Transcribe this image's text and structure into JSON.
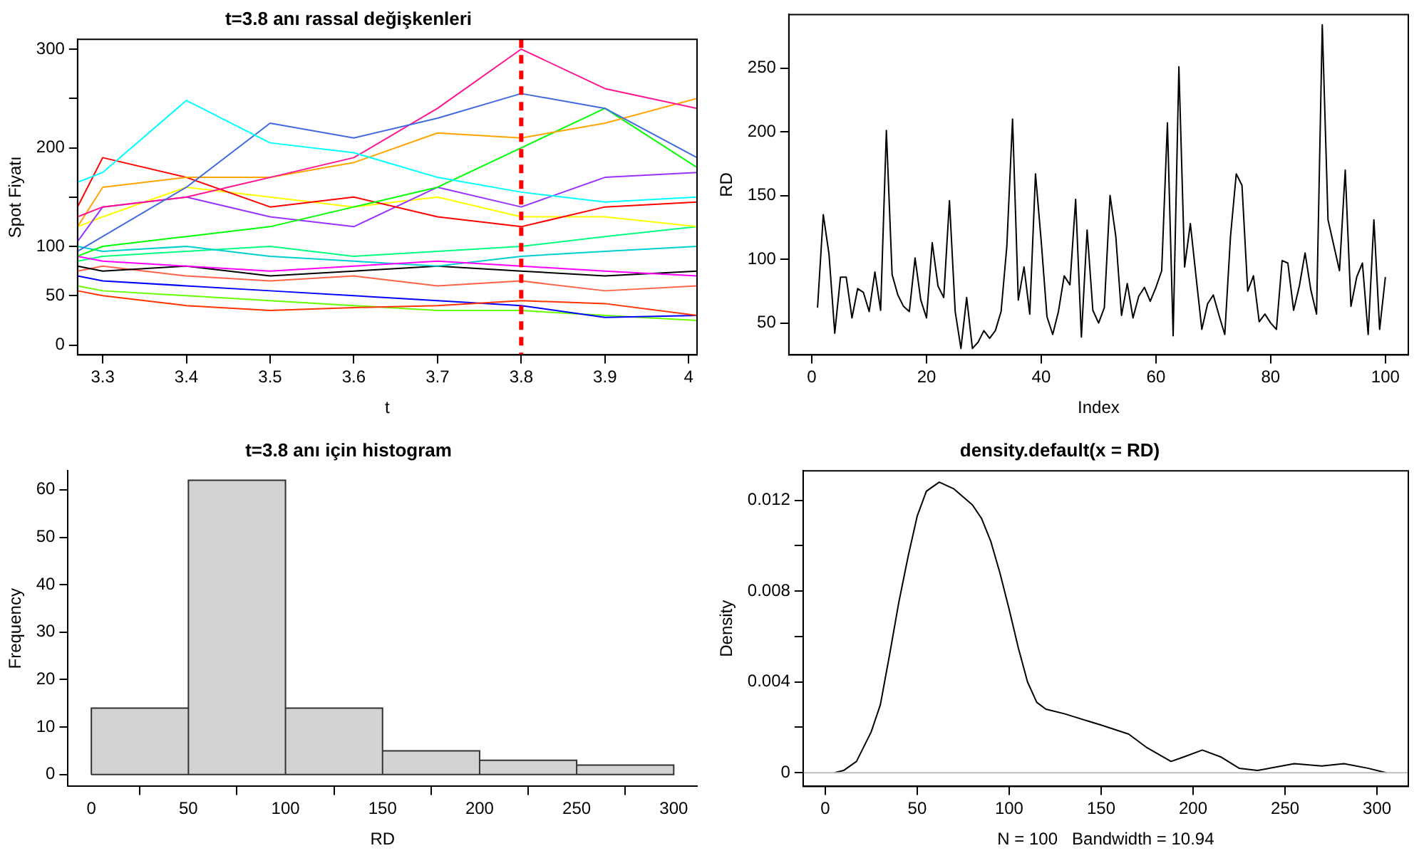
{
  "chart_data": [
    {
      "type": "line",
      "title": "t=3.8 anı rassal değişkenleri",
      "xlabel": "t",
      "ylabel": "Spot Fiyatı",
      "x": [
        3.27,
        3.3,
        3.4,
        3.5,
        3.6,
        3.7,
        3.8,
        3.9,
        4.01
      ],
      "xlim": [
        3.27,
        4.01
      ],
      "xticks": [
        3.3,
        3.4,
        3.5,
        3.6,
        3.7,
        3.8,
        3.9,
        4.0
      ],
      "ylim": [
        -10,
        310
      ],
      "yticks": [
        0,
        50,
        100,
        {
          "value": 150,
          "label": null
        },
        200,
        {
          "value": 250,
          "label": null
        },
        300
      ],
      "legend": false,
      "grid": false,
      "series": [
        {
          "color": "#00ffff",
          "values": [
            165,
            175,
            248,
            205,
            195,
            170,
            155,
            145,
            150
          ]
        },
        {
          "color": "#4169e1",
          "values": [
            95,
            110,
            160,
            225,
            210,
            230,
            255,
            240,
            190
          ]
        },
        {
          "color": "#ff1493",
          "values": [
            130,
            140,
            150,
            170,
            190,
            240,
            300,
            260,
            240
          ]
        },
        {
          "color": "#ffa500",
          "values": [
            120,
            160,
            170,
            170,
            185,
            215,
            210,
            225,
            250
          ]
        },
        {
          "color": "#00ff00",
          "values": [
            90,
            100,
            110,
            120,
            140,
            160,
            200,
            240,
            180
          ]
        },
        {
          "color": "#ff0000",
          "values": [
            140,
            190,
            170,
            140,
            150,
            130,
            120,
            140,
            145
          ]
        },
        {
          "color": "#9933ff",
          "values": [
            105,
            140,
            150,
            130,
            120,
            160,
            140,
            170,
            175
          ]
        },
        {
          "color": "#ffff00",
          "values": [
            120,
            130,
            160,
            150,
            140,
            150,
            130,
            130,
            120
          ]
        },
        {
          "color": "#ff3300",
          "values": [
            55,
            50,
            40,
            35,
            38,
            40,
            45,
            42,
            30
          ]
        },
        {
          "color": "#0000ff",
          "values": [
            70,
            65,
            60,
            55,
            50,
            45,
            40,
            28,
            30
          ]
        },
        {
          "color": "#66ff00",
          "values": [
            60,
            55,
            50,
            45,
            40,
            35,
            35,
            30,
            25
          ]
        },
        {
          "color": "#ff00ff",
          "values": [
            90,
            85,
            80,
            75,
            80,
            85,
            80,
            75,
            70
          ]
        },
        {
          "color": "#00ced1",
          "values": [
            100,
            95,
            100,
            90,
            85,
            80,
            90,
            95,
            100
          ]
        },
        {
          "color": "#000000",
          "values": [
            80,
            75,
            80,
            70,
            75,
            80,
            75,
            70,
            75
          ]
        },
        {
          "color": "#ff6347",
          "values": [
            75,
            80,
            70,
            65,
            70,
            60,
            65,
            55,
            60
          ]
        },
        {
          "color": "#00ff7f",
          "values": [
            85,
            90,
            95,
            100,
            90,
            95,
            100,
            110,
            120
          ]
        }
      ],
      "ref_lines": [
        {
          "axis": "x",
          "value": 3.8,
          "color": "#ff0000",
          "line_style": "dashed"
        }
      ]
    },
    {
      "type": "line",
      "xlabel": "Index",
      "ylabel": "RD",
      "x": [
        1,
        2,
        3,
        4,
        5,
        6,
        7,
        8,
        9,
        10,
        11,
        12,
        13,
        14,
        15,
        16,
        17,
        18,
        19,
        20,
        21,
        22,
        23,
        24,
        25,
        26,
        27,
        28,
        29,
        30,
        31,
        32,
        33,
        34,
        35,
        36,
        37,
        38,
        39,
        40,
        41,
        42,
        43,
        44,
        45,
        46,
        47,
        48,
        49,
        50,
        51,
        52,
        53,
        54,
        55,
        56,
        57,
        58,
        59,
        60,
        61,
        62,
        63,
        64,
        65,
        66,
        67,
        68,
        69,
        70,
        71,
        72,
        73,
        74,
        75,
        76,
        77,
        78,
        79,
        80,
        81,
        82,
        83,
        84,
        85,
        86,
        87,
        88,
        89,
        90,
        91,
        92,
        93,
        94,
        95,
        96,
        97,
        98,
        99,
        100
      ],
      "xlim": [
        -4,
        104
      ],
      "xticks": [
        0,
        20,
        40,
        60,
        80,
        100
      ],
      "ylim": [
        25,
        292
      ],
      "yticks": [
        50,
        100,
        150,
        200,
        250
      ],
      "legend": false,
      "grid": false,
      "series": [
        {
          "color": "#000000",
          "values": [
            62,
            135,
            104,
            42,
            86,
            86,
            54,
            77,
            74,
            59,
            90,
            60,
            201,
            88,
            72,
            63,
            59,
            101,
            68,
            54,
            113,
            79,
            70,
            146,
            59,
            30,
            70,
            30,
            35,
            44,
            38,
            44,
            59,
            110,
            210,
            68,
            94,
            57,
            167,
            114,
            55,
            41,
            59,
            87,
            80,
            147,
            39,
            123,
            60,
            50,
            62,
            150,
            118,
            56,
            81,
            54,
            71,
            78,
            67,
            78,
            91,
            207,
            40,
            251,
            94,
            128,
            86,
            45,
            65,
            72,
            56,
            41,
            118,
            167,
            158,
            75,
            87,
            51,
            57,
            50,
            45,
            99,
            97,
            60,
            79,
            105,
            76,
            57,
            284,
            131,
            111,
            91,
            170,
            63,
            86,
            97,
            41,
            131,
            45,
            86
          ]
        }
      ]
    },
    {
      "type": "histogram",
      "title": "t=3.8 anı için histogram",
      "xlabel": "RD",
      "ylabel": "Frequency",
      "bins": [
        0,
        50,
        100,
        150,
        200,
        250,
        300
      ],
      "values": [
        14,
        62,
        14,
        5,
        3,
        2
      ],
      "color": "#d3d3d3",
      "xlim": [
        -12,
        312
      ],
      "xticks": [
        0,
        50,
        100,
        150,
        200,
        250,
        300
      ],
      "ylim": [
        -2.5,
        64
      ],
      "yticks": [
        0,
        10,
        20,
        30,
        40,
        50,
        60
      ],
      "legend": false,
      "grid": false
    },
    {
      "type": "line",
      "title": "density.default(x = RD)",
      "xlabel": "N = 100   Bandwidth = 10.94",
      "ylabel": "Density",
      "xlim": [
        -12,
        317
      ],
      "xticks": [
        0,
        50,
        100,
        150,
        200,
        250,
        300
      ],
      "ylim": [
        -0.0006,
        0.0133
      ],
      "yticks": [
        0,
        {
          "value": 0.002,
          "label": null
        },
        0.004,
        {
          "value": 0.006,
          "label": null
        },
        0.008,
        {
          "value": 0.01,
          "label": null
        },
        0.012
      ],
      "legend": false,
      "grid": false,
      "series": [
        {
          "color": "#000000",
          "x": [
            5,
            10,
            17,
            25,
            30,
            35,
            40,
            45,
            50,
            55,
            62,
            70,
            80,
            85,
            90,
            95,
            100,
            105,
            110,
            115,
            120,
            130,
            150,
            165,
            175,
            188,
            195,
            205,
            215,
            225,
            235,
            255,
            270,
            282,
            295,
            305
          ],
          "values": [
            0,
            0.0001,
            0.0005,
            0.0018,
            0.003,
            0.0052,
            0.0075,
            0.0095,
            0.0113,
            0.0124,
            0.0128,
            0.0125,
            0.0118,
            0.0112,
            0.0102,
            0.0088,
            0.0072,
            0.0055,
            0.004,
            0.0031,
            0.0028,
            0.0026,
            0.0021,
            0.0017,
            0.0011,
            0.0005,
            0.0007,
            0.001,
            0.0007,
            0.0002,
            0.0001,
            0.0004,
            0.0003,
            0.0004,
            0.0002,
            0
          ]
        }
      ],
      "ref_lines": [
        {
          "axis": "y",
          "value": 0,
          "color": "#bebebe",
          "line_style": "solid"
        }
      ]
    }
  ]
}
